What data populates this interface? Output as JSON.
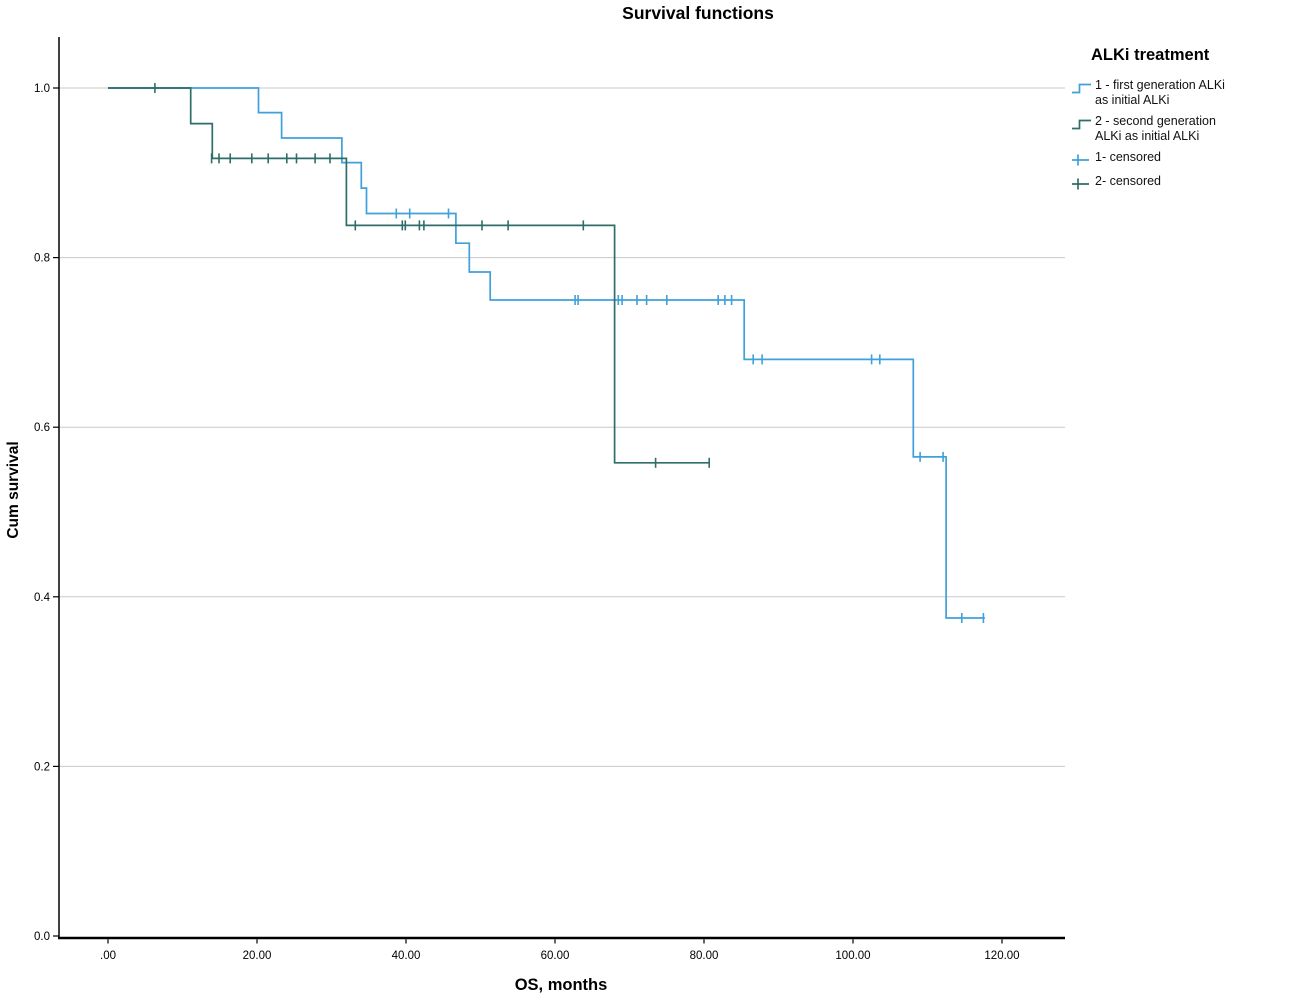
{
  "title": "Survival functions",
  "axes": {
    "x": {
      "label": "OS, months",
      "tick_labels": [
        ".00",
        "20.00",
        "40.00",
        "60.00",
        "80.00",
        "100.00",
        "120.00"
      ],
      "tick_values": [
        0,
        20,
        40,
        60,
        80,
        100,
        120
      ]
    },
    "y": {
      "label": "Cum survival",
      "tick_labels": [
        "0.0",
        "0.2",
        "0.4",
        "0.6",
        "0.8",
        "1.0"
      ],
      "tick_values": [
        0,
        0.2,
        0.4,
        0.6,
        0.8,
        1.0
      ]
    }
  },
  "legend": {
    "title": "ALKi treatment",
    "entries": [
      {
        "type": "step",
        "color": "#3FA0DA",
        "lines": [
          "1 - first generation ALKi",
          "as initial ALKi"
        ],
        "label": "1 - first generation ALKi as initial ALKi"
      },
      {
        "type": "step",
        "color": "#2D6E68",
        "lines": [
          "2 - second generation",
          "ALKi as initial ALKi"
        ],
        "label": "2 - second generation ALKi as initial ALKi"
      },
      {
        "type": "censored",
        "color": "#3FA0DA",
        "lines": [
          "1- censored"
        ],
        "label": "1- censored"
      },
      {
        "type": "censored",
        "color": "#2D6E68",
        "lines": [
          "2- censored"
        ],
        "label": "2- censored"
      }
    ]
  },
  "chart_data": {
    "type": "line",
    "subtype": "kaplan-meier-step",
    "title": "Survival functions",
    "xlabel": "OS, months",
    "ylabel": "Cum survival",
    "xlim": [
      -6.5,
      128.5
    ],
    "ylim": [
      0,
      1.06
    ],
    "grid": "horizontal-only",
    "grid_color": "#C9C9C9",
    "axis_color": "#000000",
    "legend_position": "top-right-outside",
    "series": [
      {
        "name": "1 - first generation ALKi as initial ALKi",
        "color": "#3FA0DA",
        "step_levels": [
          [
            0,
            1.0
          ],
          [
            20.2,
            0.971
          ],
          [
            23.3,
            0.941
          ],
          [
            31.4,
            0.912
          ],
          [
            34.0,
            0.882
          ],
          [
            34.7,
            0.852
          ],
          [
            46.7,
            0.817
          ],
          [
            48.5,
            0.783
          ],
          [
            51.3,
            0.75
          ],
          [
            85.4,
            0.68
          ],
          [
            108.1,
            0.565
          ],
          [
            112.5,
            0.375
          ]
        ],
        "end_x": 117.7,
        "censored": [
          [
            38.7,
            0.852
          ],
          [
            40.5,
            0.852
          ],
          [
            45.7,
            0.852
          ],
          [
            62.7,
            0.75
          ],
          [
            63.1,
            0.75
          ],
          [
            68.5,
            0.75
          ],
          [
            69.0,
            0.75
          ],
          [
            71.0,
            0.75
          ],
          [
            72.3,
            0.75
          ],
          [
            75.0,
            0.75
          ],
          [
            81.9,
            0.75
          ],
          [
            82.8,
            0.75
          ],
          [
            83.7,
            0.75
          ],
          [
            86.6,
            0.68
          ],
          [
            87.8,
            0.68
          ],
          [
            102.5,
            0.68
          ],
          [
            103.6,
            0.68
          ],
          [
            109.0,
            0.565
          ],
          [
            112.1,
            0.565
          ],
          [
            114.6,
            0.375
          ],
          [
            117.5,
            0.375
          ]
        ]
      },
      {
        "name": "2 - second generation ALKi as initial ALKi",
        "color": "#2D6E68",
        "step_levels": [
          [
            0,
            1.0
          ],
          [
            11.1,
            0.958
          ],
          [
            14.0,
            0.917
          ],
          [
            32.0,
            0.838
          ],
          [
            68.0,
            0.558
          ]
        ],
        "end_x": 80.8,
        "censored": [
          [
            6.3,
            1.0
          ],
          [
            13.9,
            0.917
          ],
          [
            14.9,
            0.917
          ],
          [
            16.4,
            0.917
          ],
          [
            19.3,
            0.917
          ],
          [
            21.5,
            0.917
          ],
          [
            24.0,
            0.917
          ],
          [
            25.3,
            0.917
          ],
          [
            27.8,
            0.917
          ],
          [
            29.8,
            0.917
          ],
          [
            33.2,
            0.838
          ],
          [
            39.5,
            0.838
          ],
          [
            39.9,
            0.838
          ],
          [
            41.8,
            0.838
          ],
          [
            42.4,
            0.838
          ],
          [
            50.2,
            0.838
          ],
          [
            53.7,
            0.838
          ],
          [
            63.8,
            0.838
          ],
          [
            73.5,
            0.558
          ],
          [
            80.7,
            0.558
          ]
        ]
      }
    ]
  }
}
